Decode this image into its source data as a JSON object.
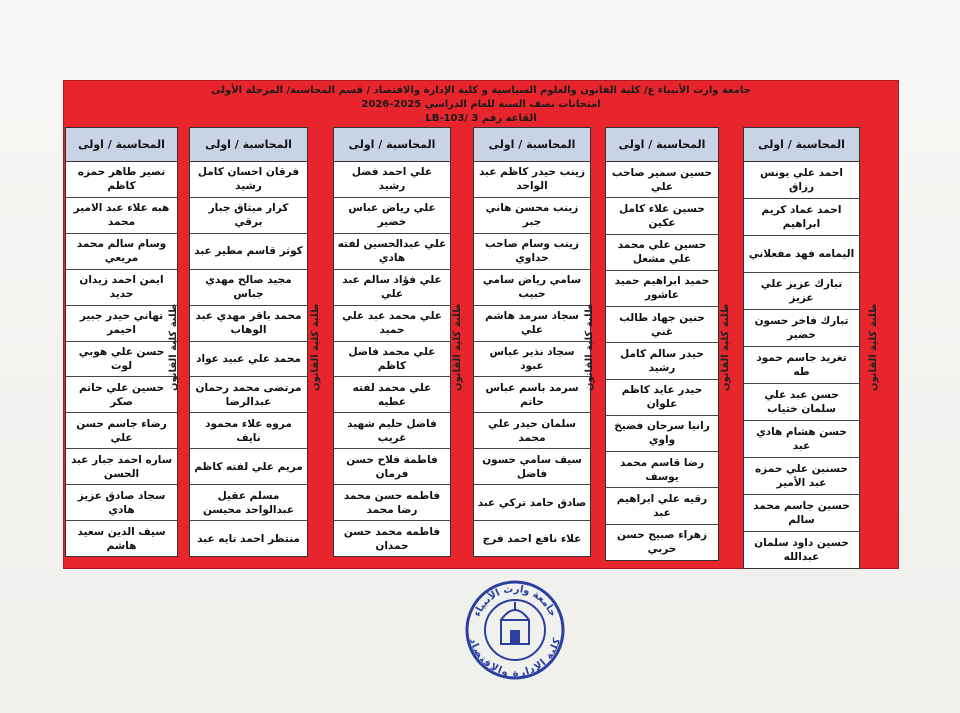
{
  "header": {
    "line1": "جامعة وارث الأنبياء ع/ كلية القانون والعلوم السياسية و كلية الإدارة والاقتصاد / قسم المحاسبة/ المرحلة الأولى",
    "line2": "امتحانات نصف السنة للعام الدراسي 2025-2026",
    "line3": "القاعة رقم 3 /LB-103"
  },
  "side_label": "طلبة كلية القانون",
  "columns": [
    {
      "header": "المحاسبة / اولى",
      "names": [
        "احمد علي يونس رزاق",
        "احمد عماد كريم ابراهيم",
        "اليمامه فهد مفعلاني",
        "تبارك عزيز علي عزيز",
        "تبارك فاخر حسون خضير",
        "تغريد جاسم حمود طه",
        "حسن عبد علي سلمان ختياب",
        "حسن هشام هادي عبد",
        "حسنين علي حمزه عبد الأمير",
        "حسين جاسم محمد سالم",
        "حسين داود سلمان عبدالله"
      ]
    },
    {
      "header": "المحاسبة / اولى",
      "names": [
        "حسين سمير صاحب علي",
        "حسين علاء كامل عكين",
        "حسين علي محمد علي مشعل",
        "حميد ابراهيم حميد عاشور",
        "حنين جهاد طالب غني",
        "حيدر سالم كامل رشيد",
        "حيدر عايد كاظم علوان",
        "رانيا سرحان فضيخ واوي",
        "رضا قاسم محمد يوسف",
        "رقيه علي ابراهيم عبد",
        "زهراء صبيح حسن حربي"
      ]
    },
    {
      "header": "المحاسبة / اولى",
      "names": [
        "زينب حيدر كاظم عبد الواحد",
        "زينب محسن هاني جبر",
        "زينب وسام صاحب حداوي",
        "سامي رياض سامي حبيب",
        "سجاد سرمد هاشم علي",
        "سجاد نذير عباس عبود",
        "سرمد باسم عباس حاتم",
        "سلمان حيدر علي محمد",
        "سيف سامي حسون فاضل",
        "صادق حامد تركي عبد",
        "علاء نافع احمد فرج"
      ]
    },
    {
      "header": "المحاسبة / اولى",
      "names": [
        "علي احمد فضل رشيد",
        "علي رياض عباس خضير",
        "علي عبدالحسين لفته هادي",
        "علي فؤاد سالم عبد علي",
        "علي محمد عبد علي حميد",
        "علي محمد فاضل كاظم",
        "علي محمد لفته عطيه",
        "فاضل حليم شهيد غريب",
        "فاطمة فلاح حسن فرمان",
        "فاطمه حسن محمد رضا محمد",
        "فاطمه محمد حسن حمدان"
      ]
    },
    {
      "header": "المحاسبة / اولى",
      "names": [
        "فرقان احسان كامل رشيد",
        "كرار ميثاق جبار برقي",
        "كوثر قاسم مطير عبد",
        "مجيد صالح مهدي جباس",
        "محمد باقر مهدي عبد الوهاب",
        "محمد علي عبيد عواد",
        "مرتضى محمد رحمان عبدالرضا",
        "مروه علاء محمود نايف",
        "مريم علي لفته كاظم",
        "مسلم عقيل عبدالواحد محيسن",
        "منتظر احمد تايه عبد"
      ]
    },
    {
      "header": "المحاسبة / اولى",
      "names": [
        "نصير طاهر حمزه كاظم",
        "هبه علاء عبد الامير محمد",
        "وسام سالم محمد مريعي",
        "ايمن احمد زيدان حديد",
        "تهاني حيدر جبير احيمر",
        "حسن علي هوبي لوت",
        "حسين علي حاتم صكر",
        "رضاء جاسم حسن علي",
        "ساره احمد جبار عبد الحسن",
        "سجاد صادق عزيز هادي",
        "سيف الدين سعيد هاشم"
      ]
    }
  ],
  "stamp": {
    "top_text": "جامعة وارث الأنبياء",
    "bottom_text": "كلية الإدارة والاقتصاد"
  },
  "colors": {
    "sheet_red": "#e8252c",
    "header_blue": "#c9d3e6",
    "stamp_blue": "#2a3fa0"
  }
}
